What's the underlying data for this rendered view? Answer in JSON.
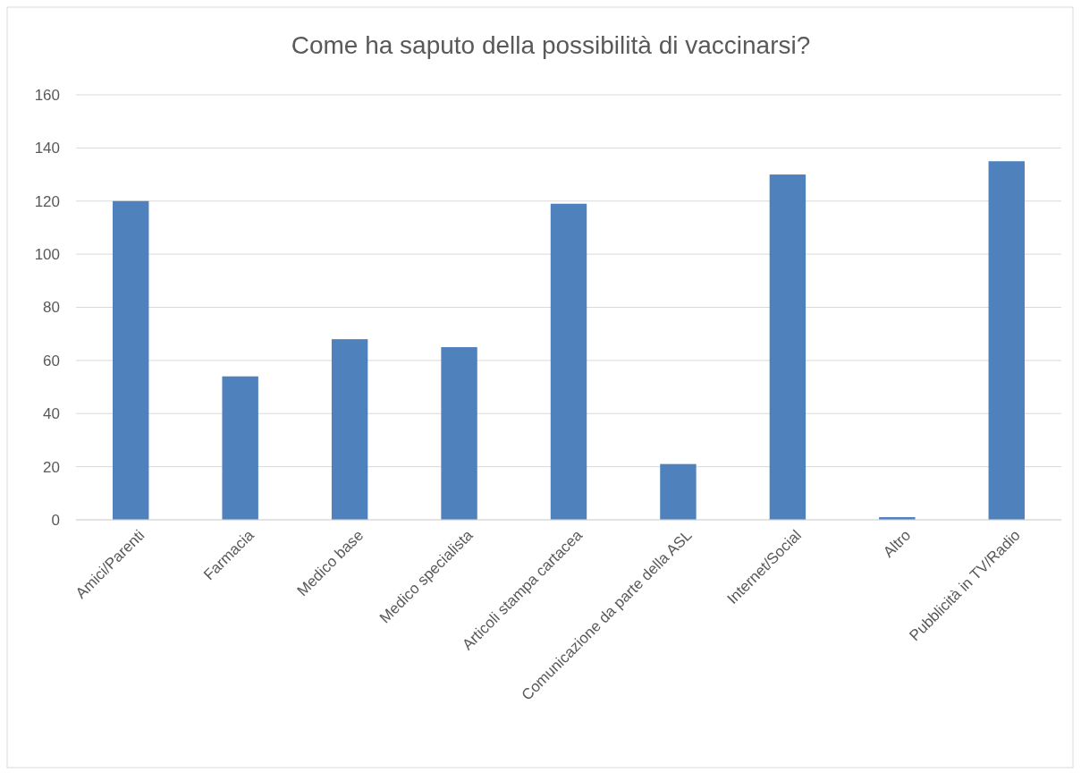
{
  "chart_data": {
    "type": "bar",
    "title": "Come ha saputo della possibilità di vaccinarsi?",
    "categories": [
      "Amici/Parenti",
      "Farmacia",
      "Medico base",
      "Medico specialista",
      "Articoli stampa cartacea",
      "Comunicazione da parte della ASL",
      "Internet/Social",
      "Altro",
      "Pubblicità in TV/Radio"
    ],
    "values": [
      120,
      54,
      68,
      65,
      119,
      21,
      130,
      1,
      135
    ],
    "color": "#4f81bd",
    "ylim": [
      0,
      160
    ],
    "yticks": [
      0,
      20,
      40,
      60,
      80,
      100,
      120,
      140,
      160
    ],
    "grid": "y"
  }
}
